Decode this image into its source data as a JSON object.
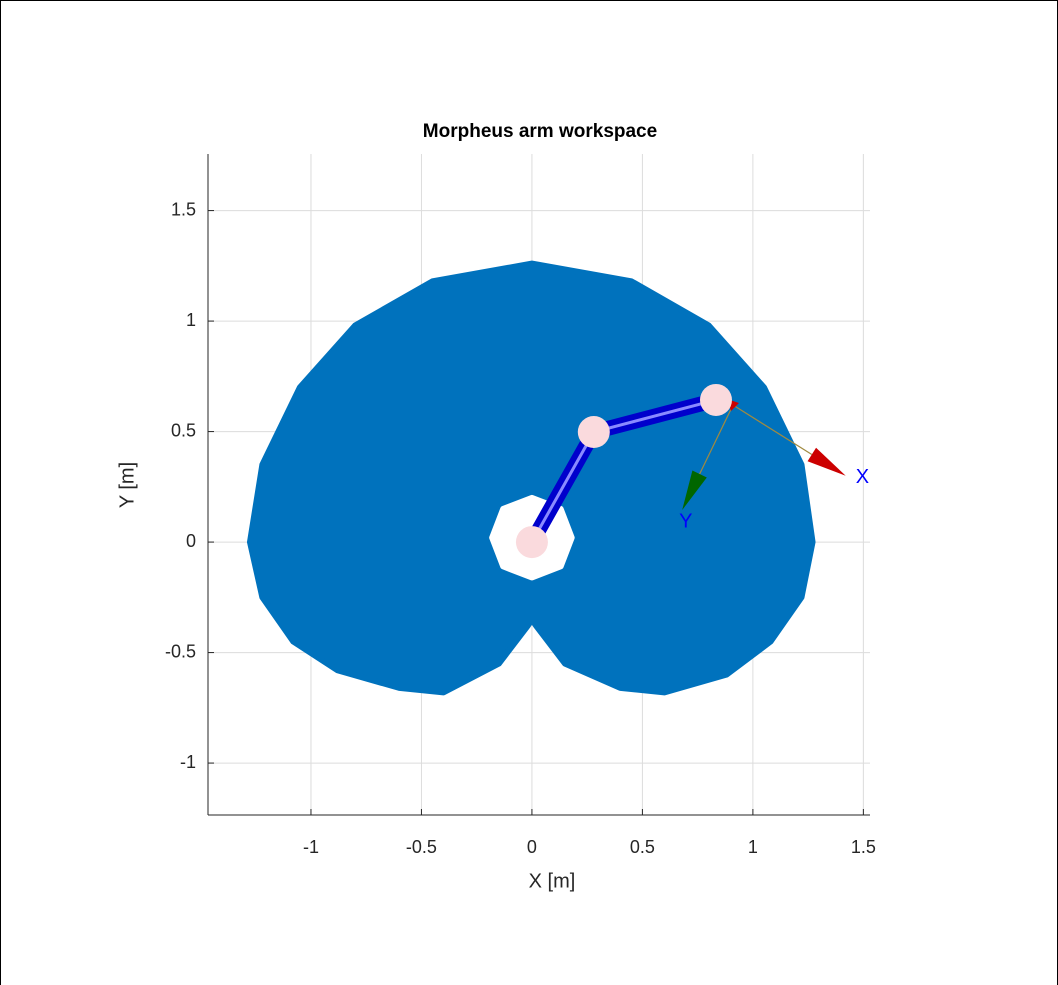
{
  "chart_data": {
    "type": "workspace",
    "title": "Morpheus arm workspace",
    "xlabel": "X [m]",
    "ylabel": "Y [m]",
    "xlim": [
      -1.466,
      1.53
    ],
    "ylim": [
      -1.235,
      1.756
    ],
    "xticks": [
      -1,
      -0.5,
      0,
      0.5,
      1,
      1.5
    ],
    "yticks": [
      -1,
      -0.5,
      0,
      0.5,
      1,
      1.5
    ],
    "grid": true,
    "regions": [
      {
        "color": "#0072bd",
        "x": [
          0,
          0.45,
          0.8,
          1.05,
          1.22,
          1.27,
          1.22,
          1.08,
          0.88,
          0.6,
          0.4,
          0.15,
          0.02,
          0,
          -0.02,
          -0.15,
          -0.4,
          -0.6,
          -0.88,
          -1.08,
          -1.22,
          -1.276,
          -1.22,
          -1.05,
          -0.8,
          -0.45
        ],
        "y": [
          1.26,
          1.18,
          0.98,
          0.7,
          0.35,
          0,
          -0.25,
          -0.45,
          -0.6,
          -0.68,
          -0.66,
          -0.55,
          -0.38,
          -0.35,
          -0.38,
          -0.55,
          -0.68,
          -0.66,
          -0.58,
          -0.45,
          -0.25,
          0,
          0.35,
          0.7,
          0.98,
          1.18
        ]
      },
      {
        "color": "#ffffff",
        "x": [
          0.18,
          0.13,
          0,
          -0.13,
          -0.18,
          -0.13,
          0,
          0.13
        ],
        "y": [
          0.02,
          0.15,
          0.2,
          0.15,
          0.02,
          -0.11,
          -0.16,
          -0.11
        ]
      }
    ],
    "arm": {
      "color": "#0000cc",
      "joint_color": "#fadadd",
      "x": [
        0,
        0.28,
        0.833
      ],
      "y": [
        0,
        0.498,
        0.643
      ]
    },
    "frame": {
      "origin": [
        0.91,
        0.62
      ],
      "axes": [
        {
          "label": "X",
          "x": 1.42,
          "y": 0.3,
          "color": "#cc0000"
        },
        {
          "label": "Y",
          "x": 0.68,
          "y": 0.145,
          "color": "#006600"
        }
      ]
    }
  }
}
